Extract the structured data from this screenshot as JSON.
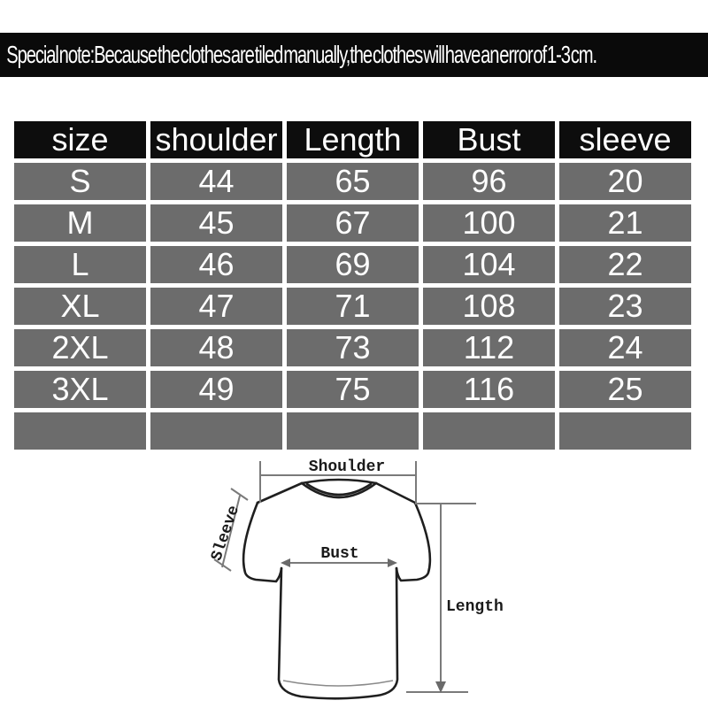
{
  "banner": {
    "text": "Special note:Because the clothes are tiled manually,the clothes will have an error of 1-3 cm.",
    "bg_color": "#0a0a0a",
    "text_color": "#ffffff"
  },
  "table": {
    "columns": [
      "size",
      "shoulder",
      "Length",
      "Bust",
      "sleeve"
    ],
    "rows": [
      [
        "S",
        "44",
        "65",
        "96",
        "20"
      ],
      [
        "M",
        "45",
        "67",
        "100",
        "21"
      ],
      [
        "L",
        "46",
        "69",
        "104",
        "22"
      ],
      [
        "XL",
        "47",
        "71",
        "108",
        "23"
      ],
      [
        "2XL",
        "48",
        "73",
        "112",
        "24"
      ],
      [
        "3XL",
        "49",
        "75",
        "116",
        "25"
      ],
      [
        "",
        "",
        "",
        "",
        ""
      ]
    ],
    "header_bg_color": "#0d0d0d",
    "cell_bg_color": "#6c6c6c",
    "text_color": "#ffffff"
  },
  "diagram": {
    "labels": {
      "shoulder": "Shoulder",
      "sleeve": "Sleeve",
      "bust": "Bust",
      "length": "Length"
    }
  }
}
